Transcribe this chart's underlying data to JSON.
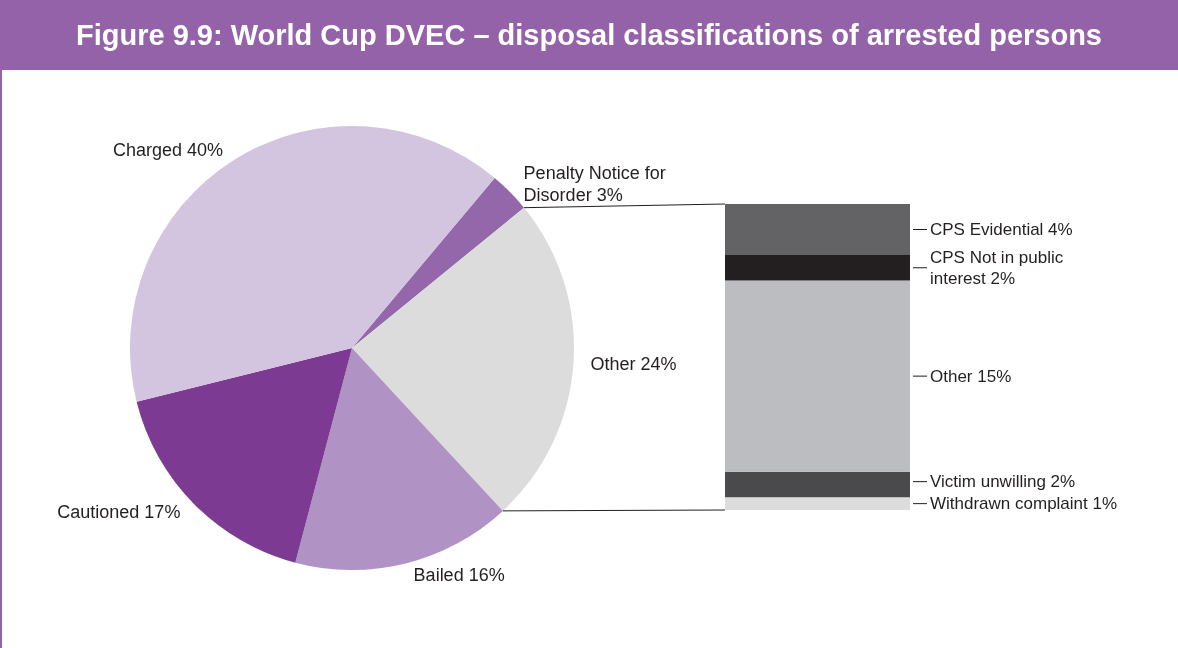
{
  "chart_data": [
    {
      "type": "pie",
      "title": "Figure 9.9: World Cup DVEC – disposal classifications of arrested persons",
      "categories": [
        "Penalty Notice for Disorder",
        "Other",
        "Bailed",
        "Cautioned",
        "Charged"
      ],
      "values": [
        3,
        24,
        16,
        17,
        40
      ],
      "value_labels": [
        "3%",
        "24%",
        "16%",
        "17%",
        "40%"
      ],
      "colors": [
        "#9467ab",
        "#dcdcdd",
        "#b093c4",
        "#7d3a92",
        "#d3c4df"
      ]
    },
    {
      "type": "bar",
      "stacked": true,
      "categories": [
        null
      ],
      "series": [
        {
          "color": "#dcdcdd",
          "values": [
            1
          ],
          "value_labels": [
            "Withdrawn complaint 1%"
          ]
        },
        {
          "color": "#4a4a4c",
          "values": [
            2
          ],
          "value_labels": [
            "Victim unwilling 2%"
          ]
        },
        {
          "color": "#bcbdc0",
          "values": [
            15
          ],
          "value_labels": [
            "Other 15%"
          ]
        },
        {
          "color": "#231f20",
          "values": [
            2
          ],
          "value_labels": [
            "CPS Not in public interest 2%"
          ]
        },
        {
          "color": "#636365",
          "values": [
            4
          ],
          "value_labels": [
            "CPS Evidential 4%"
          ]
        }
      ]
    }
  ]
}
